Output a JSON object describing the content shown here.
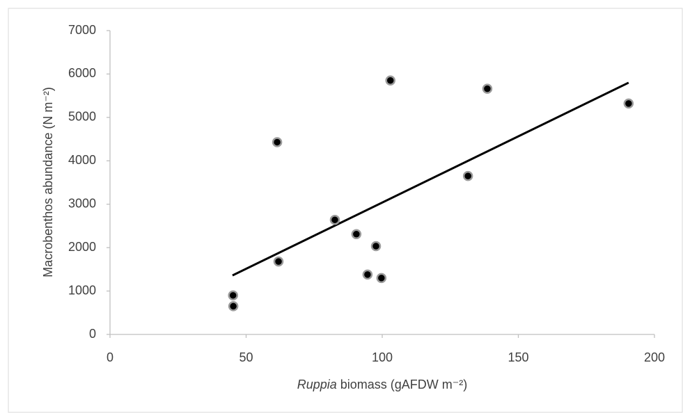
{
  "chart_data": {
    "type": "scatter",
    "x_label": [
      "Ruppia",
      "biomass (gAFDW m⁻²)"
    ],
    "y_label": "Macrobenthos abundance (N m⁻²)",
    "xlim": [
      0,
      200
    ],
    "xticks": [
      0,
      50,
      100,
      150,
      200
    ],
    "ylim": [
      0,
      7000
    ],
    "yticks": [
      0,
      1000,
      2000,
      3000,
      4000,
      5000,
      6000,
      7000
    ],
    "grid": false,
    "series": [
      {
        "color": "#000000",
        "x": [
          45.3,
          45.2,
          61.4,
          61.9,
          82.6,
          90.5,
          97.7,
          94.6,
          99.7,
          103,
          131.5,
          138.6,
          190.5
        ],
        "values": [
          650,
          900,
          4430,
          1680,
          2640,
          2310,
          2035,
          1380,
          1300,
          5850,
          3650,
          5660,
          5320
        ]
      }
    ],
    "trendline": {
      "color": "#000000",
      "x": [
        45,
        190.5
      ],
      "values": [
        1360,
        5800
      ]
    }
  }
}
